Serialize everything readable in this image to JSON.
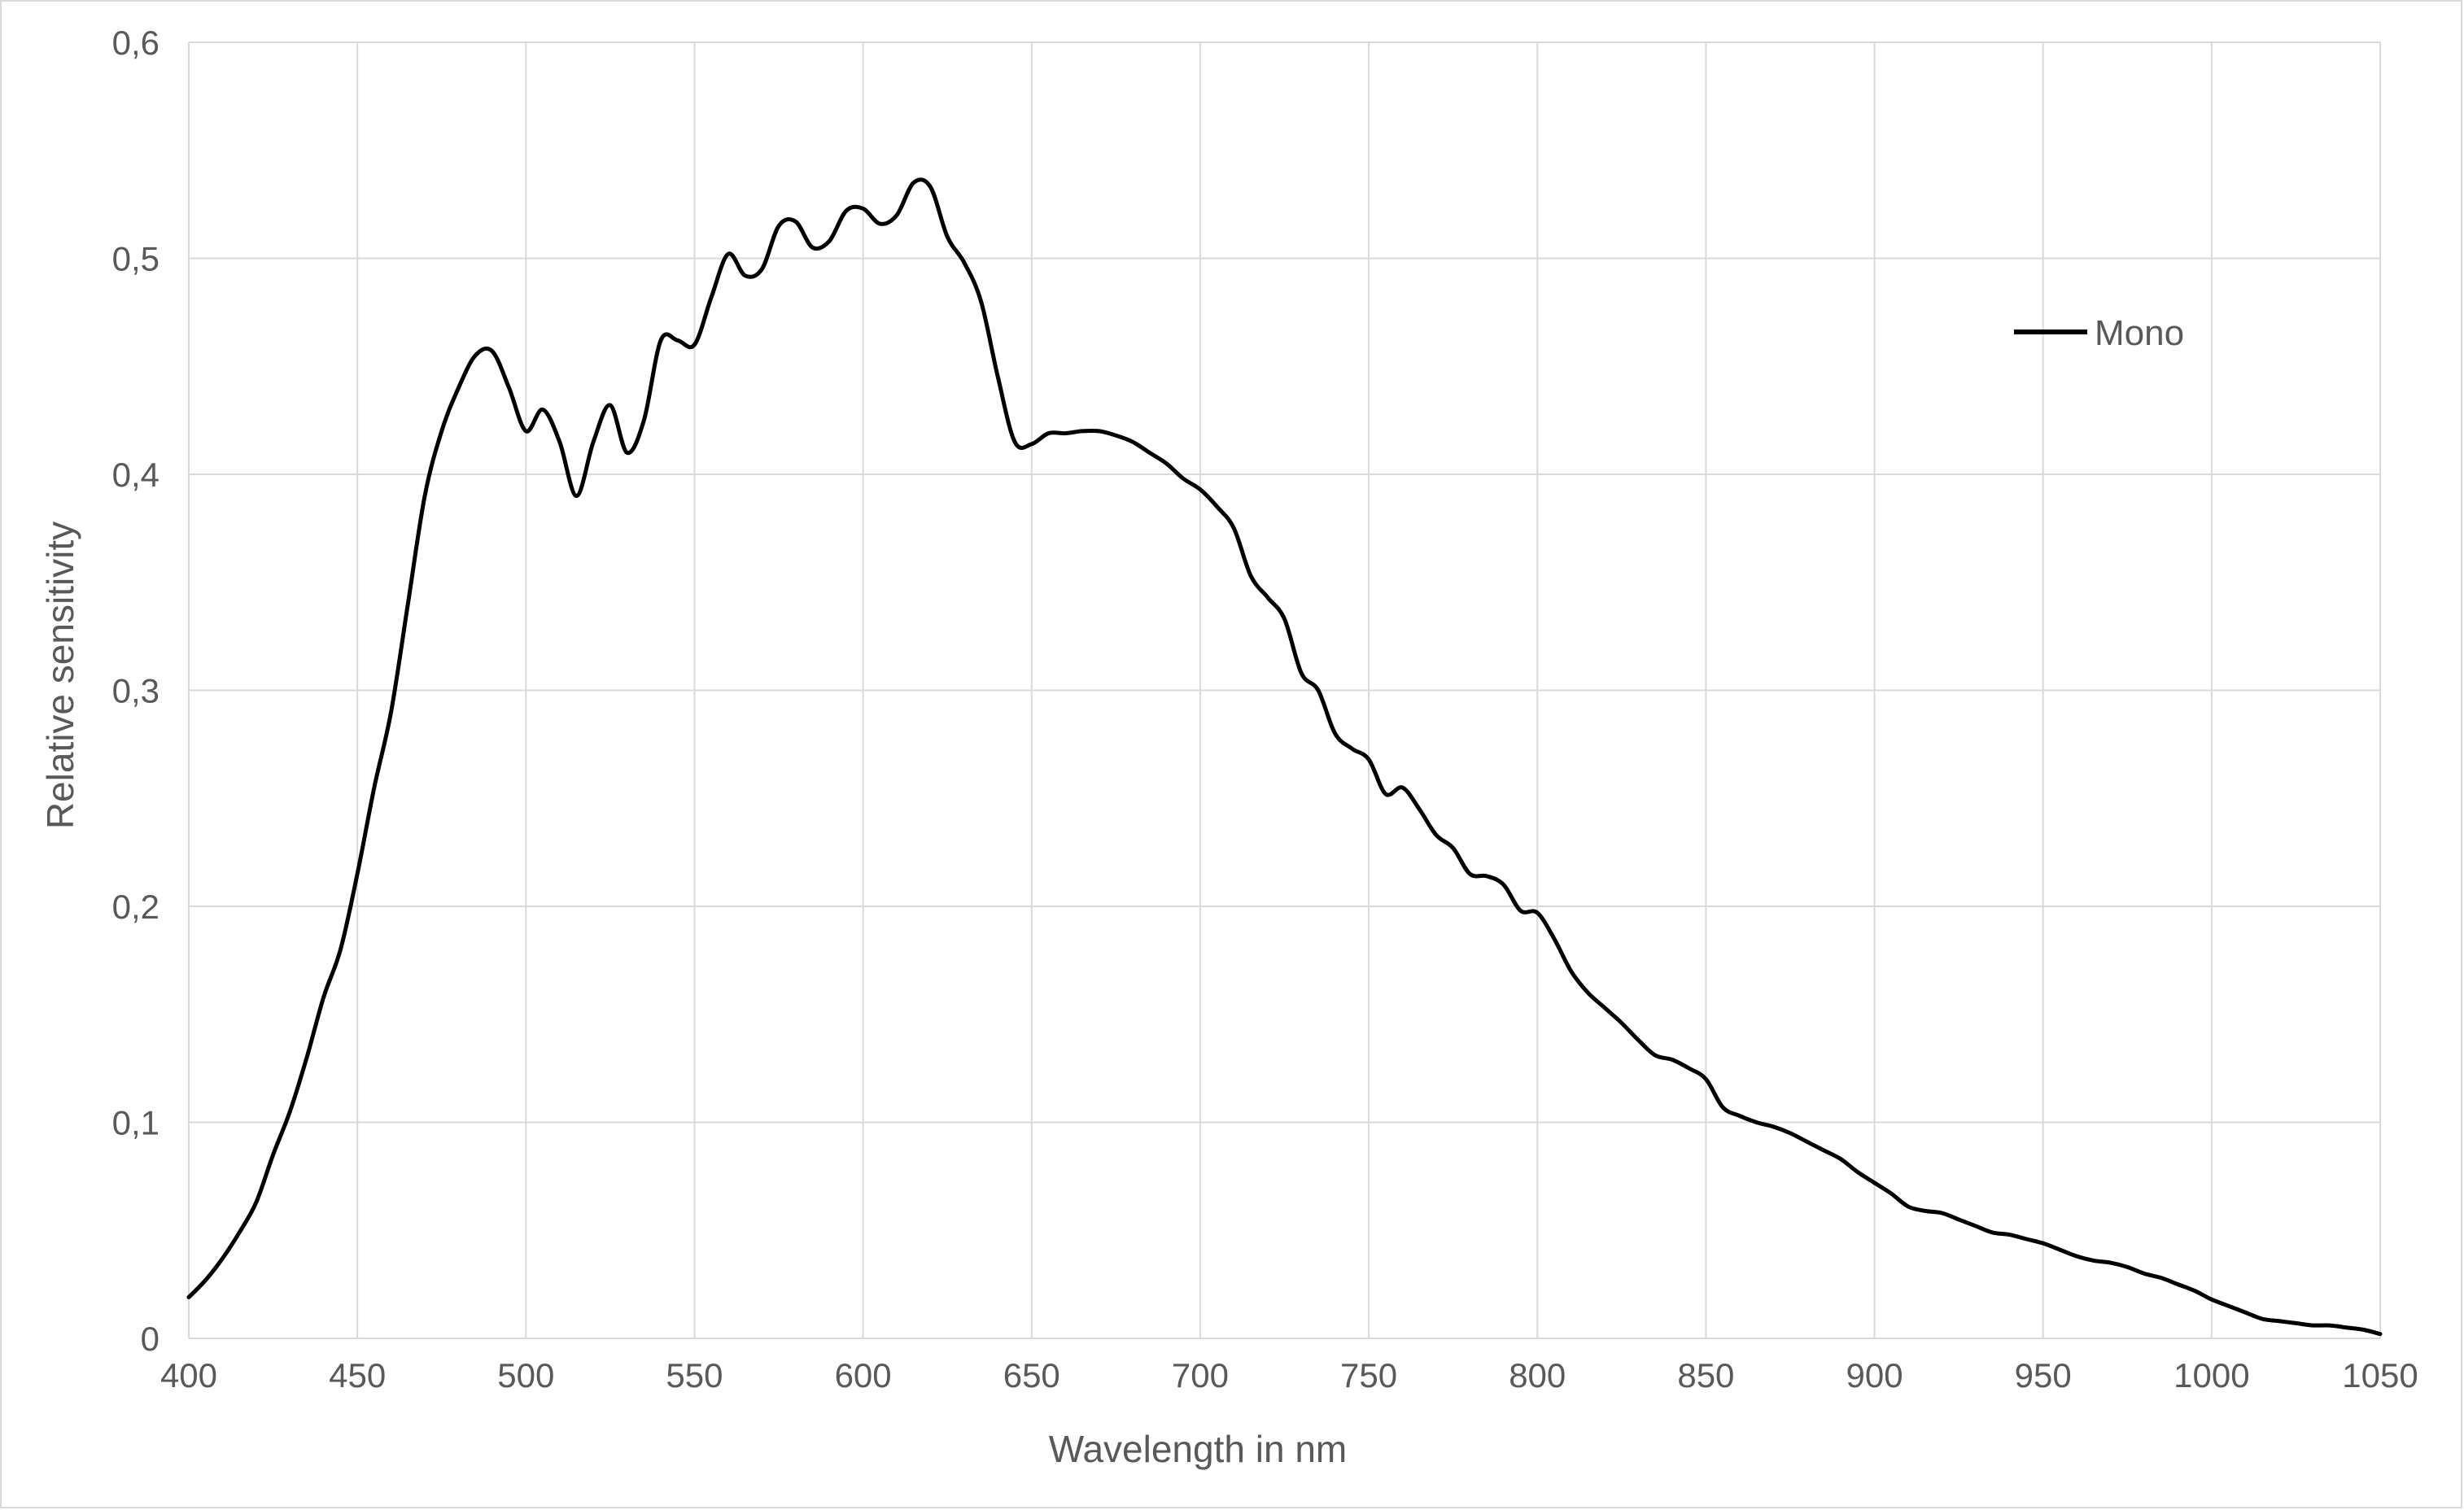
{
  "chart_data": {
    "type": "line",
    "title": "",
    "xlabel": "Wavelength in nm",
    "ylabel": "Relative sensitivity",
    "xlim": [
      400,
      1050
    ],
    "ylim": [
      0,
      0.6
    ],
    "x_ticks": [
      400,
      450,
      500,
      550,
      600,
      650,
      700,
      750,
      800,
      850,
      900,
      950,
      1000,
      1050
    ],
    "x_tick_labels": [
      "400",
      "450",
      "500",
      "550",
      "600",
      "650",
      "700",
      "750",
      "800",
      "850",
      "900",
      "950",
      "1000",
      "1050"
    ],
    "y_ticks": [
      0,
      0.1,
      0.2,
      0.3,
      0.4,
      0.5,
      0.6
    ],
    "y_tick_labels": [
      "0",
      "0,1",
      "0,2",
      "0,3",
      "0,4",
      "0,5",
      "0,6"
    ],
    "grid": true,
    "legend_position": "top-right",
    "series": [
      {
        "name": "Mono",
        "color": "#000000",
        "x": [
          400,
          405,
          410,
          415,
          420,
          425,
          430,
          435,
          440,
          445,
          450,
          455,
          460,
          465,
          470,
          475,
          480,
          485,
          490,
          495,
          500,
          505,
          510,
          515,
          520,
          525,
          530,
          535,
          540,
          545,
          550,
          555,
          560,
          565,
          570,
          575,
          580,
          585,
          590,
          595,
          600,
          605,
          610,
          615,
          620,
          625,
          630,
          635,
          640,
          645,
          650,
          655,
          660,
          665,
          670,
          675,
          680,
          685,
          690,
          695,
          700,
          705,
          710,
          715,
          720,
          725,
          730,
          735,
          740,
          745,
          750,
          755,
          760,
          765,
          770,
          775,
          780,
          785,
          790,
          795,
          800,
          805,
          810,
          815,
          820,
          825,
          830,
          835,
          840,
          845,
          850,
          855,
          860,
          865,
          870,
          875,
          880,
          885,
          890,
          895,
          900,
          905,
          910,
          915,
          920,
          925,
          930,
          935,
          940,
          945,
          950,
          955,
          960,
          965,
          970,
          975,
          980,
          985,
          990,
          995,
          1000,
          1005,
          1010,
          1015,
          1020,
          1025,
          1030,
          1035,
          1040,
          1045,
          1050
        ],
        "y": [
          0.019,
          0.027,
          0.037,
          0.049,
          0.063,
          0.085,
          0.105,
          0.13,
          0.158,
          0.18,
          0.215,
          0.255,
          0.29,
          0.34,
          0.39,
          0.42,
          0.44,
          0.455,
          0.457,
          0.44,
          0.42,
          0.43,
          0.415,
          0.39,
          0.415,
          0.432,
          0.41,
          0.425,
          0.462,
          0.462,
          0.46,
          0.482,
          0.502,
          0.492,
          0.495,
          0.515,
          0.517,
          0.505,
          0.508,
          0.522,
          0.523,
          0.516,
          0.52,
          0.535,
          0.533,
          0.51,
          0.498,
          0.48,
          0.445,
          0.415,
          0.414,
          0.419,
          0.419,
          0.42,
          0.42,
          0.418,
          0.415,
          0.41,
          0.405,
          0.398,
          0.393,
          0.385,
          0.375,
          0.353,
          0.343,
          0.333,
          0.308,
          0.3,
          0.28,
          0.273,
          0.268,
          0.252,
          0.255,
          0.245,
          0.233,
          0.227,
          0.215,
          0.214,
          0.21,
          0.198,
          0.197,
          0.185,
          0.17,
          0.16,
          0.153,
          0.146,
          0.138,
          0.131,
          0.129,
          0.125,
          0.12,
          0.107,
          0.103,
          0.1,
          0.098,
          0.095,
          0.091,
          0.087,
          0.083,
          0.077,
          0.072,
          0.067,
          0.061,
          0.059,
          0.058,
          0.055,
          0.052,
          0.049,
          0.048,
          0.046,
          0.044,
          0.041,
          0.038,
          0.036,
          0.035,
          0.033,
          0.03,
          0.028,
          0.025,
          0.022,
          0.018,
          0.015,
          0.012,
          0.009,
          0.008,
          0.007,
          0.006,
          0.006,
          0.005,
          0.004,
          0.002
        ]
      }
    ]
  }
}
